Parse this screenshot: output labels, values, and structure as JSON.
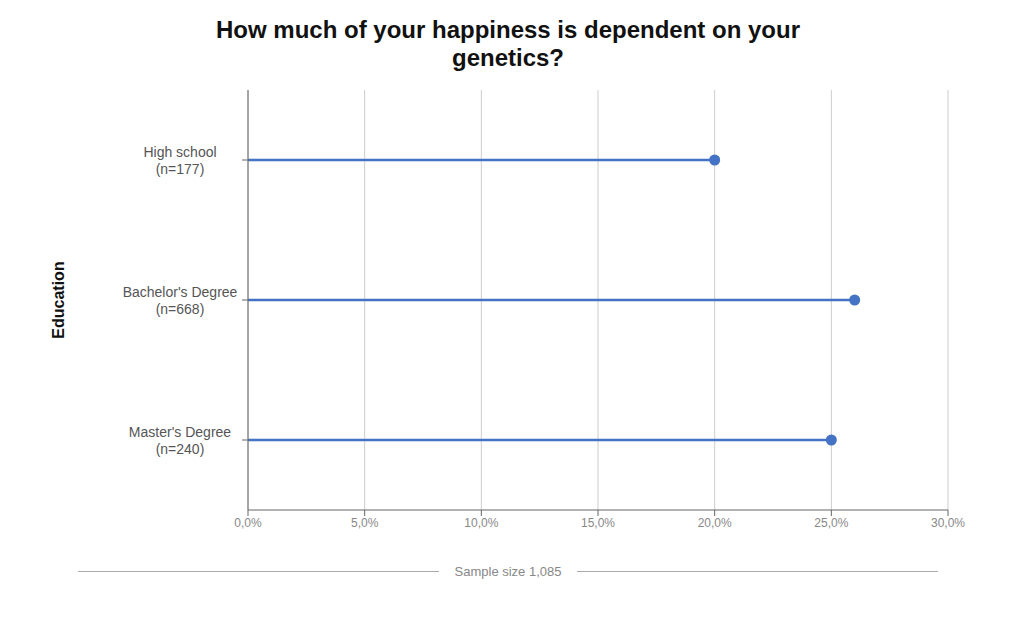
{
  "chart_data": {
    "type": "lollipop",
    "orientation": "horizontal",
    "title": "How much of your happiness is dependent on your\ngenetics?",
    "y_label": "Education",
    "categories": [
      "High school\n(n=177)",
      "Bachelor's Degree\n(n=668)",
      "Master's Degree\n(n=240)"
    ],
    "values": [
      0.2,
      0.26,
      0.25
    ],
    "color": "#4472C4",
    "xlim": [
      0,
      0.3
    ],
    "xticks": [
      {
        "value": 0.0,
        "label": "0,0%"
      },
      {
        "value": 0.05,
        "label": "5,0%"
      },
      {
        "value": 0.1,
        "label": "10,0%"
      },
      {
        "value": 0.15,
        "label": "15,0%"
      },
      {
        "value": 0.2,
        "label": "20,0%"
      },
      {
        "value": 0.25,
        "label": "25,0%"
      },
      {
        "value": 0.3,
        "label": "30,0%"
      }
    ],
    "grid": true,
    "annotations": [
      "Sample size 1,085"
    ]
  }
}
